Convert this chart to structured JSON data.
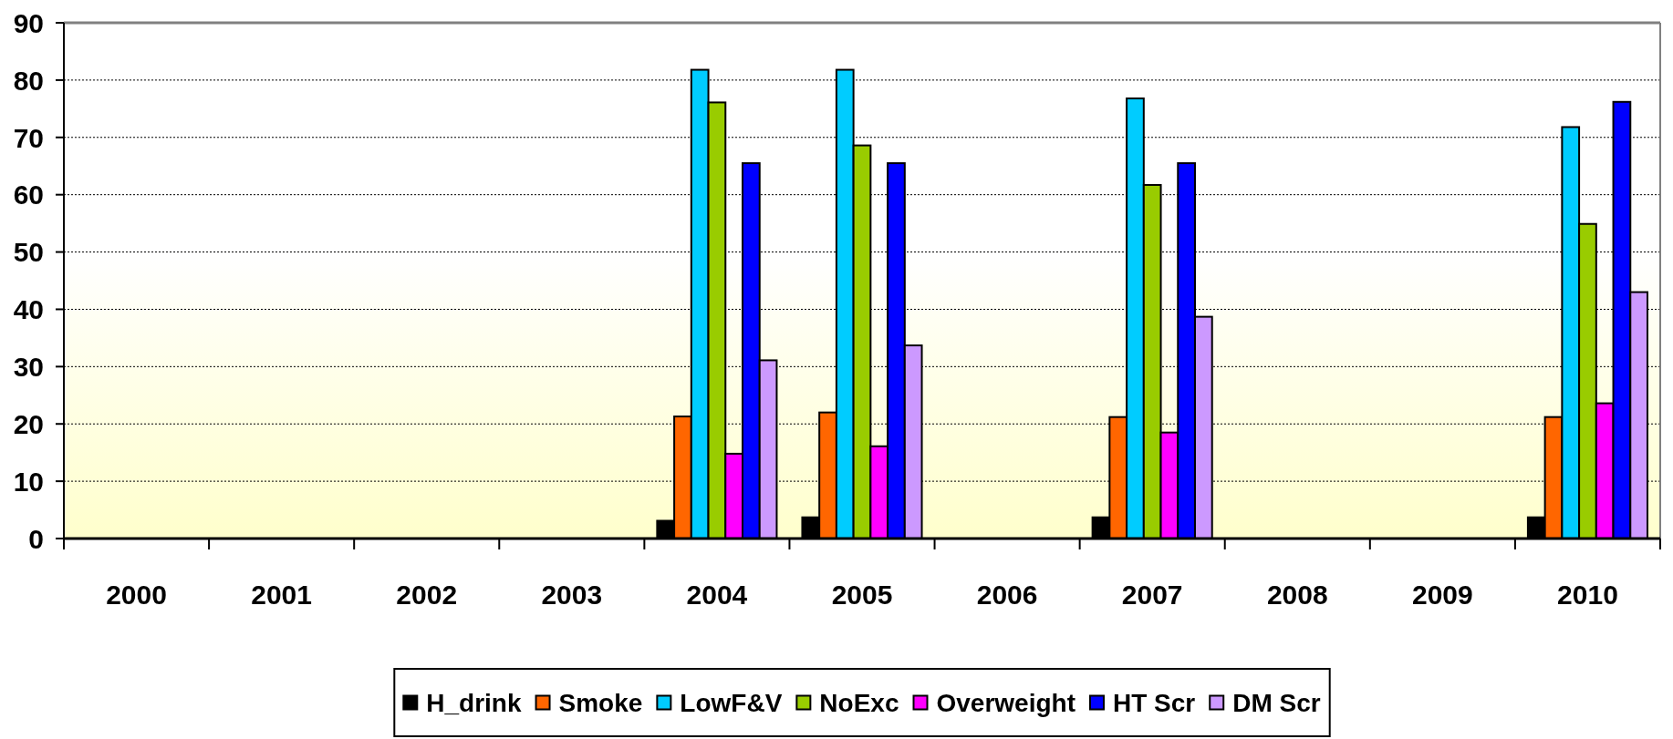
{
  "chart_data": {
    "type": "bar",
    "categories": [
      "2000",
      "2001",
      "2002",
      "2003",
      "2004",
      "2005",
      "2006",
      "2007",
      "2008",
      "2009",
      "2010"
    ],
    "series": [
      {
        "name": "H_drink",
        "color": "#000000",
        "values": [
          null,
          null,
          null,
          null,
          3.1,
          3.7,
          null,
          3.7,
          null,
          null,
          3.7
        ]
      },
      {
        "name": "Smoke",
        "color": "#ff6600",
        "values": [
          null,
          null,
          null,
          null,
          21.3,
          22.0,
          null,
          21.2,
          null,
          null,
          21.2
        ]
      },
      {
        "name": "LowF&V",
        "color": "#00ccff",
        "values": [
          null,
          null,
          null,
          null,
          81.8,
          81.8,
          null,
          76.8,
          null,
          null,
          71.8
        ]
      },
      {
        "name": "NoExc",
        "color": "#99cc00",
        "values": [
          null,
          null,
          null,
          null,
          76.1,
          68.6,
          null,
          61.7,
          null,
          null,
          54.9
        ]
      },
      {
        "name": "Overweight",
        "color": "#ff00ff",
        "values": [
          null,
          null,
          null,
          null,
          14.8,
          16.1,
          null,
          18.5,
          null,
          null,
          23.6
        ]
      },
      {
        "name": "HT Scr",
        "color": "#0000ff",
        "values": [
          null,
          null,
          null,
          null,
          65.5,
          65.5,
          null,
          65.5,
          null,
          null,
          76.2
        ]
      },
      {
        "name": "DM Scr",
        "color": "#cc99ff",
        "values": [
          null,
          null,
          null,
          null,
          31.1,
          33.7,
          null,
          38.7,
          null,
          null,
          43.0
        ]
      }
    ],
    "ylim": [
      0,
      90
    ],
    "yticks": [
      0,
      10,
      20,
      30,
      40,
      50,
      60,
      70,
      80,
      90
    ],
    "grid": "y",
    "legend": "bottom"
  }
}
